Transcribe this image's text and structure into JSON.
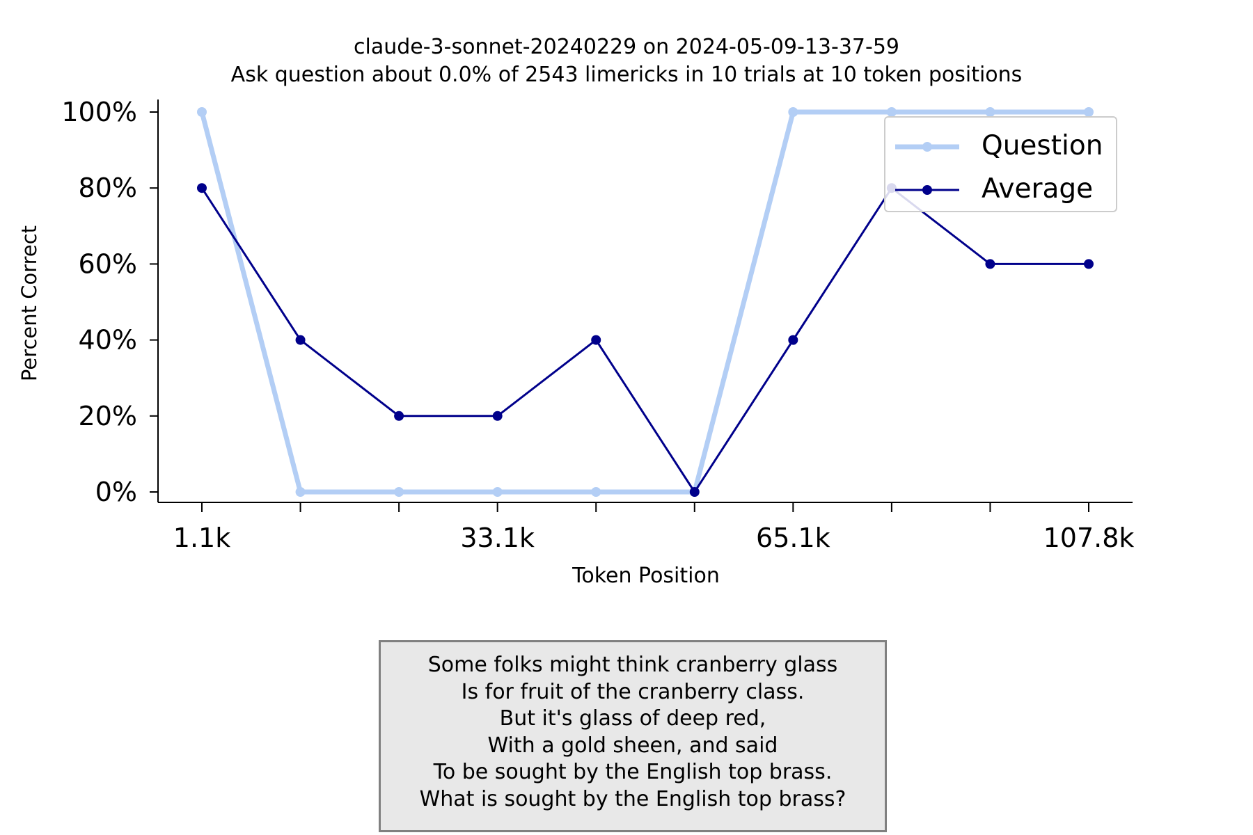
{
  "chart_data": {
    "type": "line",
    "title": "claude-3-sonnet-20240229 on 2024-05-09-13-37-59",
    "subtitle": "Ask question about 0.0% of 2543 limericks in 10 trials at 10 token positions",
    "xlabel": "Token Position",
    "ylabel": "Percent Correct",
    "x_tick_labels": [
      "1.1k",
      "",
      "",
      "33.1k",
      "",
      "",
      "65.1k",
      "",
      "",
      "107.8k"
    ],
    "y_tick_labels": [
      "0%",
      "20%",
      "40%",
      "60%",
      "80%",
      "100%"
    ],
    "ylim": [
      0,
      100
    ],
    "grid": false,
    "legend_position": "top-right",
    "series": [
      {
        "name": "Question",
        "color": "#b3cef5",
        "values": [
          100,
          0,
          0,
          0,
          0,
          0,
          100,
          100,
          100,
          100
        ]
      },
      {
        "name": "Average",
        "color": "#00008b",
        "values": [
          80,
          40,
          20,
          20,
          40,
          0,
          40,
          80,
          60,
          60
        ]
      }
    ]
  },
  "limerick_lines": [
    "Some folks might think cranberry glass",
    "Is for fruit of the cranberry class.",
    "But it's glass of deep red,",
    "With a gold sheen, and said",
    "To be sought by the English top brass.",
    "What is sought by the English top brass?"
  ]
}
